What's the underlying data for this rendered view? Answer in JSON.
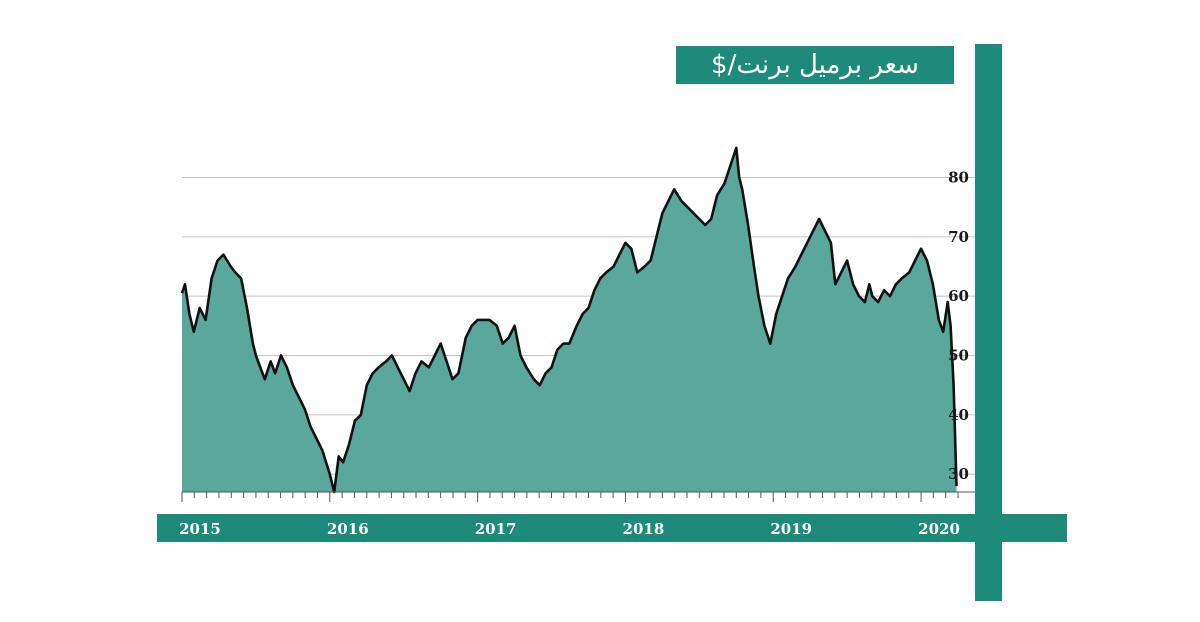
{
  "title": "سعر برميل برنت/$",
  "colors": {
    "teal": "#1e8a7a",
    "area_fill": "#5aa89c",
    "line": "#111111",
    "grid": "#c9c0c0"
  },
  "chart_data": {
    "type": "area",
    "title": "سعر برميل برنت/$",
    "xlabel": "",
    "ylabel": "",
    "ylim": [
      27,
      88
    ],
    "xlim": [
      2015.0,
      2020.25
    ],
    "y_ticks": [
      30,
      40,
      50,
      60,
      70,
      80
    ],
    "x_ticks": [
      {
        "label": "2015",
        "value": 2015.0
      },
      {
        "label": "2016",
        "value": 2016.0
      },
      {
        "label": "2017",
        "value": 2017.0
      },
      {
        "label": "2018",
        "value": 2018.0
      },
      {
        "label": "2019",
        "value": 2019.0
      },
      {
        "label": "2020",
        "value": 2020.0
      }
    ],
    "grid": true,
    "y_axis_position": "right",
    "series": [
      {
        "x": [
          2015.0,
          2015.02,
          2015.05,
          2015.08,
          2015.12,
          2015.16,
          2015.2,
          2015.24,
          2015.28,
          2015.33,
          2015.36,
          2015.4,
          2015.44,
          2015.48,
          2015.5,
          2015.53,
          2015.56,
          2015.6,
          2015.63,
          2015.67,
          2015.71,
          2015.75,
          2015.79,
          2015.83,
          2015.87,
          2015.91,
          2015.95,
          2016.0,
          2016.03,
          2016.06,
          2016.09,
          2016.13,
          2016.17,
          2016.21,
          2016.25,
          2016.29,
          2016.33,
          2016.38,
          2016.42,
          2016.46,
          2016.5,
          2016.54,
          2016.58,
          2016.62,
          2016.67,
          2016.71,
          2016.75,
          2016.79,
          2016.83,
          2016.87,
          2016.92,
          2016.96,
          2017.0,
          2017.04,
          2017.08,
          2017.13,
          2017.17,
          2017.21,
          2017.25,
          2017.29,
          2017.33,
          2017.38,
          2017.42,
          2017.46,
          2017.5,
          2017.54,
          2017.58,
          2017.62,
          2017.67,
          2017.71,
          2017.75,
          2017.79,
          2017.83,
          2017.87,
          2017.92,
          2017.96,
          2018.0,
          2018.04,
          2018.08,
          2018.13,
          2018.17,
          2018.21,
          2018.25,
          2018.29,
          2018.33,
          2018.38,
          2018.42,
          2018.46,
          2018.5,
          2018.54,
          2018.58,
          2018.62,
          2018.67,
          2018.71,
          2018.75,
          2018.77,
          2018.79,
          2018.83,
          2018.87,
          2018.9,
          2018.94,
          2018.98,
          2019.02,
          2019.06,
          2019.1,
          2019.15,
          2019.19,
          2019.23,
          2019.27,
          2019.31,
          2019.35,
          2019.39,
          2019.42,
          2019.46,
          2019.5,
          2019.54,
          2019.58,
          2019.62,
          2019.65,
          2019.67,
          2019.71,
          2019.75,
          2019.79,
          2019.83,
          2019.87,
          2019.92,
          2019.96,
          2020.0,
          2020.04,
          2020.08,
          2020.12,
          2020.15,
          2020.18,
          2020.2,
          2020.22,
          2020.24
        ],
        "y": [
          60.5,
          62,
          57,
          54,
          58,
          56,
          63,
          66,
          67,
          65,
          64,
          63,
          58,
          52,
          50,
          48,
          46,
          49,
          47,
          50,
          48,
          45,
          43,
          41,
          38,
          36,
          34,
          30,
          27,
          33,
          32,
          35,
          39,
          40,
          45,
          47,
          48,
          49,
          50,
          48,
          46,
          44,
          47,
          49,
          48,
          50,
          52,
          49,
          46,
          47,
          53,
          55,
          56,
          56,
          56,
          55,
          52,
          53,
          55,
          50,
          48,
          46,
          45,
          47,
          48,
          51,
          52,
          52,
          55,
          57,
          58,
          61,
          63,
          64,
          65,
          67,
          69,
          68,
          64,
          65,
          66,
          70,
          74,
          76,
          78,
          76,
          75,
          74,
          73,
          72,
          73,
          77,
          79,
          82,
          85,
          80,
          78,
          72,
          65,
          60,
          55,
          52,
          57,
          60,
          63,
          65,
          67,
          69,
          71,
          73,
          71,
          69,
          62,
          64,
          66,
          62,
          60,
          59,
          62,
          60,
          59,
          61,
          60,
          62,
          63,
          64,
          66,
          68,
          66,
          62,
          56,
          54,
          59,
          55,
          45,
          28
        ]
      }
    ]
  }
}
